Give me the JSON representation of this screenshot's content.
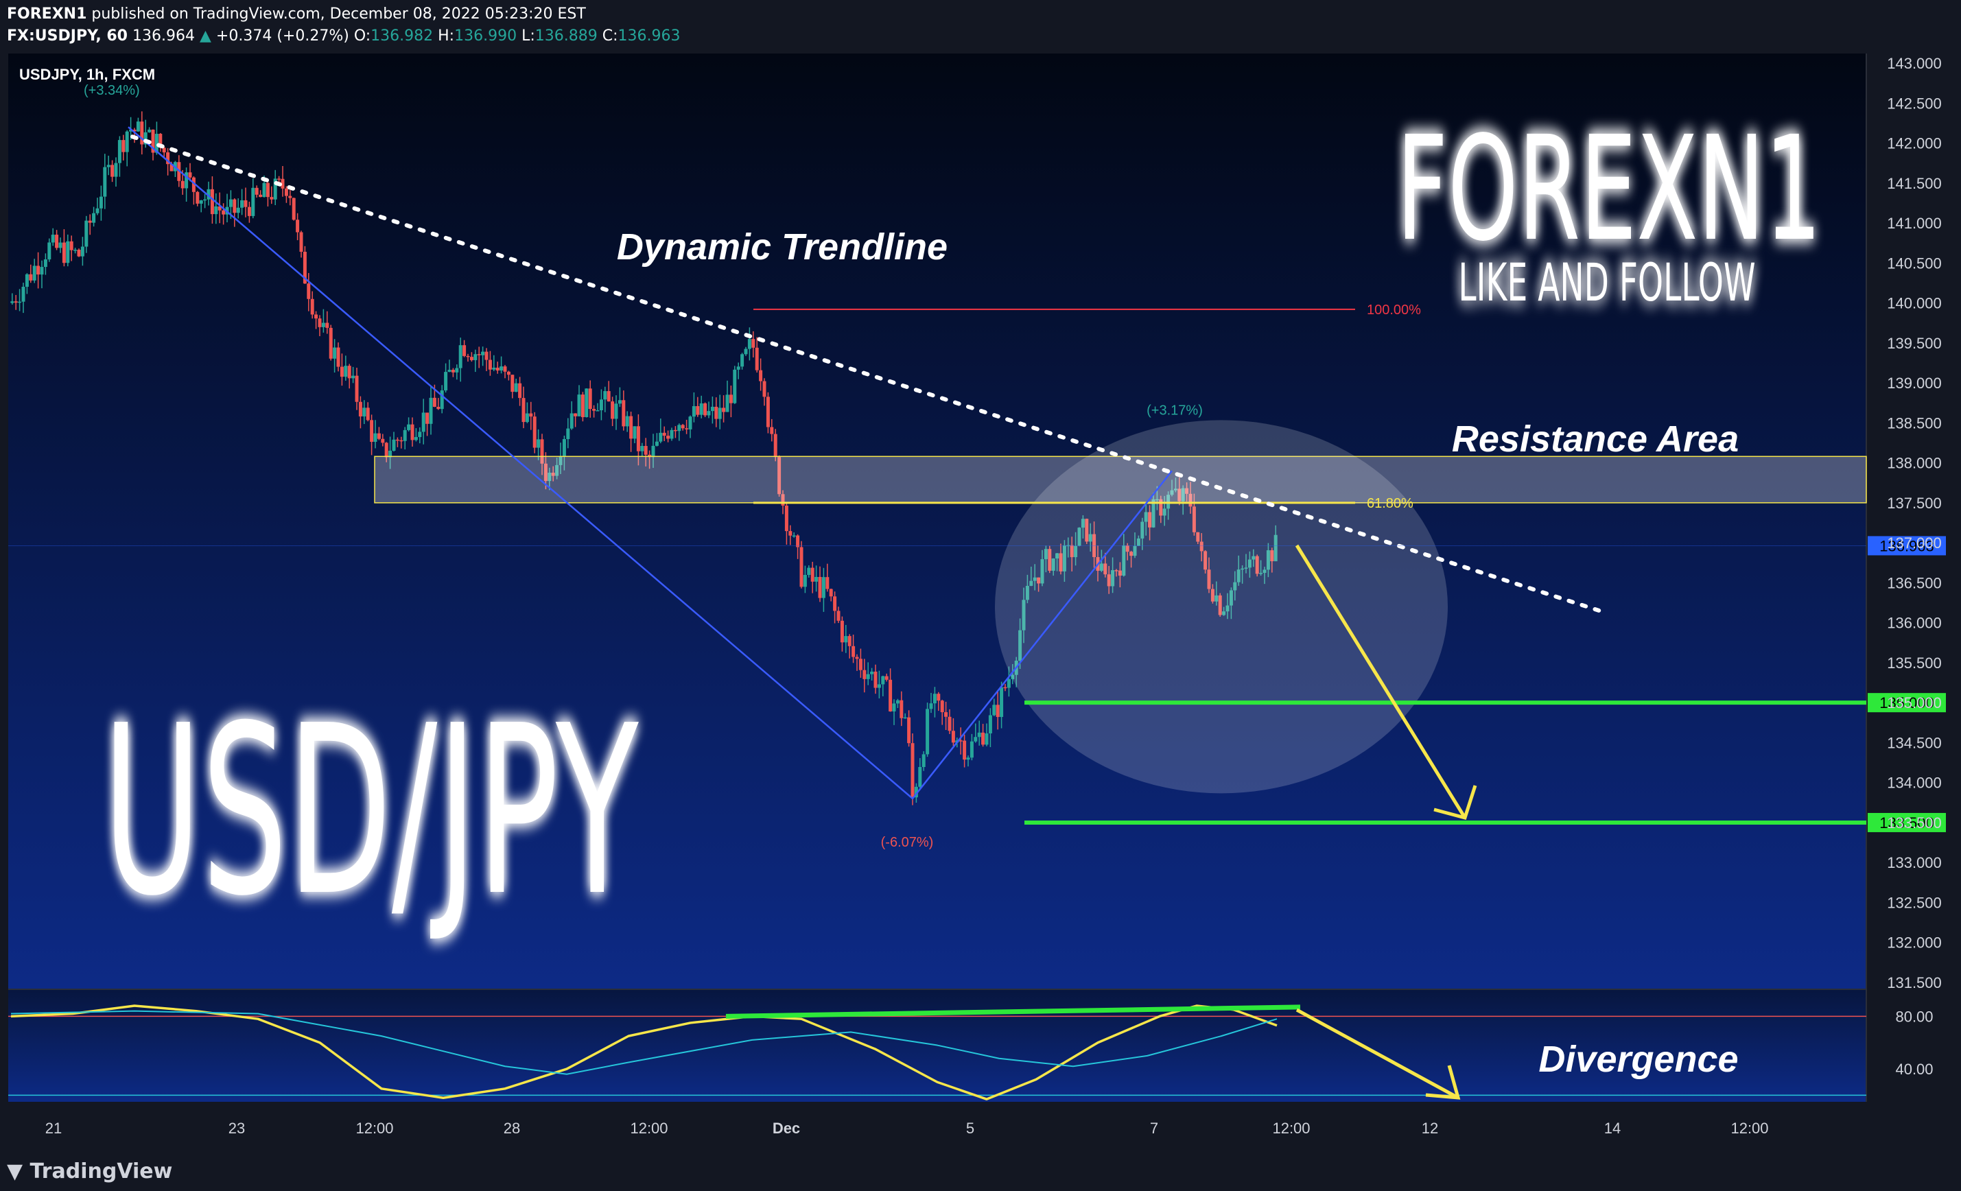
{
  "header": {
    "author": "FOREXN1",
    "published": "published on TradingView.com, December 08, 2022 05:23:20 EST",
    "symbol": "FX:USDJPY, 60",
    "last": "136.964",
    "arrow": "▲",
    "change": "+0.374 (+0.27%)",
    "o_label": "O:",
    "o_val": "136.982",
    "h_label": "H:",
    "h_val": "136.990",
    "l_label": "L:",
    "l_val": "136.889",
    "c_label": "C:",
    "c_val": "136.963"
  },
  "legend": {
    "symbol": "USDJPY, 1h, FXCM",
    "top_change": "(+3.34%)"
  },
  "branding": {
    "big_pair": "USD/JPY",
    "brand": "FOREXN1",
    "tagline": "LIKE AND FOLLOW",
    "footer": "TradingView",
    "footer_icon": "tradingview-logo-icon"
  },
  "annotations": {
    "dynamic_trendline": "Dynamic Trendline",
    "resistance_area": "Resistance Area",
    "divergence": "Divergence",
    "fib_100": "100.00%",
    "fib_618": "61.80%",
    "up_change": "(+3.17%)",
    "down_change": "(-6.07%)"
  },
  "colors": {
    "background_top": "#020713",
    "background_bottom": "#0d2a86",
    "up_candle": "#26a69a",
    "down_candle": "#ef5350",
    "trendline": "#ffffff",
    "support": "#2ee83a",
    "arrow": "#f7e64a",
    "fib_100": "#f23645",
    "fib_618": "#f7e64a",
    "current_price": "#2962ff"
  },
  "chart_data": [
    {
      "type": "candlestick",
      "title": "USDJPY, 1h, FXCM",
      "y_axis_ticks": [
        "143.000",
        "142.500",
        "142.000",
        "141.500",
        "141.000",
        "140.500",
        "140.000",
        "139.500",
        "139.000",
        "138.500",
        "138.000",
        "137.500",
        "137.000",
        "136.500",
        "136.000",
        "135.500",
        "135.000",
        "134.500",
        "134.000",
        "133.500",
        "133.000",
        "132.500",
        "132.000",
        "131.500"
      ],
      "x_axis_ticks": [
        "21",
        "23",
        "12:00",
        "28",
        "12:00",
        "Dec",
        "5",
        "7",
        "12:00",
        "12",
        "14",
        "12:00"
      ],
      "ylim": [
        131.5,
        143.0
      ],
      "current_price": "136.963",
      "price_path": [
        [
          0,
          140.0
        ],
        [
          30,
          140.7
        ],
        [
          55,
          140.6
        ],
        [
          75,
          141.5
        ],
        [
          95,
          142.2
        ],
        [
          118,
          142.0
        ],
        [
          150,
          141.4
        ],
        [
          175,
          141.1
        ],
        [
          200,
          141.3
        ],
        [
          225,
          141.5
        ],
        [
          235,
          140.5
        ],
        [
          250,
          139.7
        ],
        [
          275,
          139.0
        ],
        [
          300,
          138.1
        ],
        [
          320,
          138.4
        ],
        [
          345,
          138.7
        ],
        [
          365,
          139.5
        ],
        [
          385,
          139.3
        ],
        [
          410,
          138.9
        ],
        [
          435,
          137.8
        ],
        [
          455,
          138.7
        ],
        [
          475,
          138.8
        ],
        [
          495,
          138.6
        ],
        [
          515,
          138.0
        ],
        [
          535,
          138.5
        ],
        [
          555,
          138.6
        ],
        [
          575,
          138.6
        ],
        [
          600,
          139.5
        ],
        [
          610,
          139.0
        ],
        [
          615,
          138.3
        ],
        [
          625,
          137.5
        ],
        [
          640,
          136.6
        ],
        [
          660,
          136.4
        ],
        [
          680,
          135.6
        ],
        [
          700,
          135.3
        ],
        [
          725,
          134.8
        ],
        [
          730,
          133.8
        ],
        [
          745,
          135.0
        ],
        [
          760,
          134.7
        ],
        [
          775,
          134.4
        ],
        [
          795,
          134.8
        ],
        [
          810,
          135.4
        ],
        [
          825,
          136.5
        ],
        [
          840,
          136.8
        ],
        [
          855,
          136.8
        ],
        [
          870,
          137.2
        ],
        [
          885,
          136.5
        ],
        [
          900,
          136.8
        ],
        [
          920,
          137.3
        ],
        [
          940,
          137.6
        ],
        [
          955,
          137.5
        ],
        [
          965,
          136.7
        ],
        [
          980,
          136.2
        ],
        [
          1000,
          136.7
        ],
        [
          1015,
          136.8
        ],
        [
          1025,
          136.963
        ]
      ],
      "levels": [
        {
          "label": "135.000",
          "value": 135.0
        },
        {
          "label": "133.500",
          "value": 133.5
        }
      ],
      "fib_levels": [
        {
          "label": "100.00%",
          "value": 139.92
        },
        {
          "label": "61.80%",
          "value": 137.5
        }
      ],
      "resistance_zone": [
        137.5,
        138.08
      ],
      "trendline_points": [
        [
          95,
          142.2
        ],
        [
          1285,
          136.12
        ]
      ]
    },
    {
      "type": "line",
      "title": "Oscillator",
      "y_axis_ticks": [
        "80.00",
        "40.00"
      ],
      "ylim": [
        15,
        100
      ],
      "levels": [
        80,
        20
      ],
      "series": [
        {
          "color": "#f7e64a",
          "points": [
            [
              0,
              80
            ],
            [
              50,
              82
            ],
            [
              100,
              88
            ],
            [
              150,
              84
            ],
            [
              200,
              78
            ],
            [
              250,
              60
            ],
            [
              300,
              25
            ],
            [
              350,
              18
            ],
            [
              400,
              25
            ],
            [
              450,
              40
            ],
            [
              500,
              65
            ],
            [
              550,
              75
            ],
            [
              600,
              80
            ],
            [
              640,
              78
            ],
            [
              700,
              55
            ],
            [
              750,
              30
            ],
            [
              790,
              17
            ],
            [
              830,
              32
            ],
            [
              880,
              60
            ],
            [
              930,
              80
            ],
            [
              960,
              88
            ],
            [
              990,
              85
            ],
            [
              1025,
              73
            ]
          ]
        },
        {
          "color": "#26c6da",
          "points": [
            [
              0,
              82
            ],
            [
              100,
              84
            ],
            [
              200,
              82
            ],
            [
              300,
              65
            ],
            [
              400,
              42
            ],
            [
              450,
              36
            ],
            [
              500,
              45
            ],
            [
              600,
              62
            ],
            [
              680,
              68
            ],
            [
              750,
              58
            ],
            [
              800,
              48
            ],
            [
              860,
              42
            ],
            [
              920,
              50
            ],
            [
              980,
              65
            ],
            [
              1025,
              78
            ]
          ]
        }
      ],
      "divergence_line": [
        [
          580,
          80
        ],
        [
          1040,
          87
        ]
      ]
    }
  ]
}
